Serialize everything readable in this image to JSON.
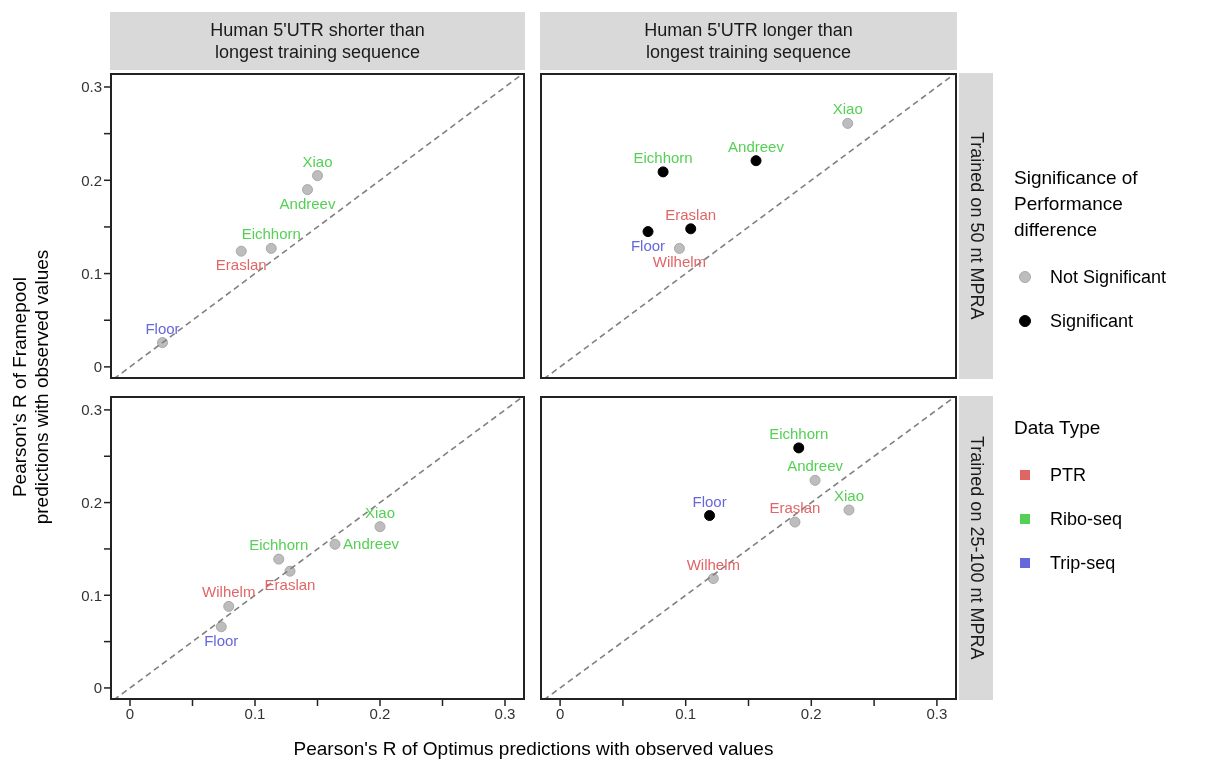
{
  "chart_data": [
    {
      "type": "scatter",
      "title": "Human 5'UTR shorter than longest training sequence",
      "ylabel": "Pearson's R of Framepool predictions with observed values",
      "tick_labels": "y",
      "xlim": [
        -0.016,
        0.316
      ],
      "ylim": [
        -0.013,
        0.315
      ],
      "yticks": [
        0,
        {
          "value": 0.05,
          "label": null
        },
        0.1,
        {
          "value": 0.15,
          "label": null
        },
        0.2,
        {
          "value": 0.25,
          "label": null
        },
        0.3
      ],
      "series": [
        {
          "type": "scatter",
          "color": "#e06666",
          "x": [
            0.089
          ],
          "values": [
            0.124
          ],
          "value_labels": [
            "Eraslan"
          ],
          "colors": [
            "#bdbdbd"
          ]
        },
        {
          "type": "scatter",
          "color": "#55d055",
          "x": [
            0.113,
            0.142,
            0.15
          ],
          "values": [
            0.127,
            0.19,
            0.205
          ],
          "value_labels": [
            "Eichhorn",
            "Andreev",
            "Xiao"
          ],
          "colors": [
            "#bdbdbd",
            "#bdbdbd",
            "#bdbdbd"
          ]
        },
        {
          "type": "scatter",
          "color": "#6666dd",
          "x": [
            0.026
          ],
          "values": [
            0.026
          ],
          "value_labels": [
            "Floor"
          ],
          "colors": [
            "#bdbdbd"
          ]
        },
        {
          "type": "line",
          "color": "#808080",
          "line_style": "dashed",
          "x": [
            -0.013,
            0.315
          ],
          "values": [
            -0.013,
            0.315
          ]
        }
      ]
    },
    {
      "type": "scatter",
      "title": "Human 5'UTR longer than longest training sequence",
      "y2label": "Trained on 50 nt MPRA",
      "tick_labels": false,
      "xlim": [
        -0.016,
        0.316
      ],
      "ylim": [
        -0.013,
        0.315
      ],
      "series": [
        {
          "type": "scatter",
          "color": "#e06666",
          "x": [
            0.095,
            0.104
          ],
          "values": [
            0.127,
            0.148
          ],
          "value_labels": [
            "Wilhelm",
            "Eraslan"
          ],
          "colors": [
            "#bdbdbd",
            "#000000"
          ]
        },
        {
          "type": "scatter",
          "color": "#55d055",
          "x": [
            0.082,
            0.156,
            0.229
          ],
          "values": [
            0.209,
            0.221,
            0.261
          ],
          "value_labels": [
            "Eichhorn",
            "Andreev",
            "Xiao"
          ],
          "colors": [
            "#000000",
            "#000000",
            "#bdbdbd"
          ]
        },
        {
          "type": "scatter",
          "color": "#6666dd",
          "x": [
            0.07
          ],
          "values": [
            0.145
          ],
          "value_labels": [
            "Floor"
          ],
          "colors": [
            "#000000"
          ]
        },
        {
          "type": "line",
          "color": "#808080",
          "line_style": "dashed",
          "x": [
            -0.013,
            0.315
          ],
          "values": [
            -0.013,
            0.315
          ]
        }
      ]
    },
    {
      "type": "scatter",
      "xlabel": "Pearson's R of Optimus predictions with observed values",
      "xlim": [
        -0.016,
        0.316
      ],
      "ylim": [
        -0.013,
        0.315
      ],
      "xticks": [
        0,
        {
          "value": 0.05,
          "label": null
        },
        0.1,
        {
          "value": 0.15,
          "label": null
        },
        0.2,
        {
          "value": 0.25,
          "label": null
        },
        0.3
      ],
      "yticks": [
        0,
        {
          "value": 0.05,
          "label": null
        },
        0.1,
        {
          "value": 0.15,
          "label": null
        },
        0.2,
        {
          "value": 0.25,
          "label": null
        },
        0.3
      ],
      "series": [
        {
          "type": "scatter",
          "color": "#e06666",
          "x": [
            0.079,
            0.128
          ],
          "values": [
            0.088,
            0.126
          ],
          "value_labels": [
            "Wilhelm",
            "Eraslan"
          ],
          "colors": [
            "#bdbdbd",
            "#bdbdbd"
          ]
        },
        {
          "type": "scatter",
          "color": "#55d055",
          "x": [
            0.119,
            0.164,
            0.2
          ],
          "values": [
            0.139,
            0.155,
            0.174
          ],
          "value_labels": [
            "Eichhorn",
            "Andreev",
            "Xiao"
          ],
          "colors": [
            "#bdbdbd",
            "#bdbdbd",
            "#bdbdbd"
          ]
        },
        {
          "type": "scatter",
          "color": "#6666dd",
          "x": [
            0.073
          ],
          "values": [
            0.066
          ],
          "value_labels": [
            "Floor"
          ],
          "colors": [
            "#bdbdbd"
          ]
        },
        {
          "type": "line",
          "color": "#808080",
          "line_style": "dashed",
          "x": [
            -0.013,
            0.315
          ],
          "values": [
            -0.013,
            0.315
          ]
        }
      ]
    },
    {
      "type": "scatter",
      "y2label": "Trained on 25-100 nt MPRA",
      "tick_labels": "x",
      "xlim": [
        -0.016,
        0.316
      ],
      "ylim": [
        -0.013,
        0.315
      ],
      "xticks": [
        0,
        {
          "value": 0.05,
          "label": null
        },
        0.1,
        {
          "value": 0.15,
          "label": null
        },
        0.2,
        {
          "value": 0.25,
          "label": null
        },
        0.3
      ],
      "series": [
        {
          "type": "scatter",
          "color": "#e06666",
          "x": [
            0.122,
            0.187
          ],
          "values": [
            0.118,
            0.179
          ],
          "value_labels": [
            "Wilhelm",
            "Eraslan"
          ],
          "colors": [
            "#bdbdbd",
            "#bdbdbd"
          ]
        },
        {
          "type": "scatter",
          "color": "#55d055",
          "x": [
            0.19,
            0.203,
            0.23
          ],
          "values": [
            0.259,
            0.224,
            0.192
          ],
          "value_labels": [
            "Eichhorn",
            "Andreev",
            "Xiao"
          ],
          "colors": [
            "#000000",
            "#bdbdbd",
            "#bdbdbd"
          ]
        },
        {
          "type": "scatter",
          "color": "#6666dd",
          "x": [
            0.119
          ],
          "values": [
            0.186
          ],
          "value_labels": [
            "Floor"
          ],
          "colors": [
            "#000000"
          ]
        },
        {
          "type": "line",
          "color": "#808080",
          "line_style": "dashed",
          "x": [
            -0.013,
            0.315
          ],
          "values": [
            -0.013,
            0.315
          ]
        }
      ]
    },
    {
      "type": "other",
      "legend_title": "Significance of Performance difference",
      "categories": [
        "Not Significant",
        "Significant"
      ],
      "colors": [
        "#bdbdbd",
        "#000000"
      ]
    },
    {
      "type": "other",
      "legend_title": "Data Type",
      "categories": [
        "PTR",
        "Ribo-seq",
        "Trip-seq"
      ],
      "colors": [
        "#e06666",
        "#55d055",
        "#6666dd"
      ]
    }
  ]
}
